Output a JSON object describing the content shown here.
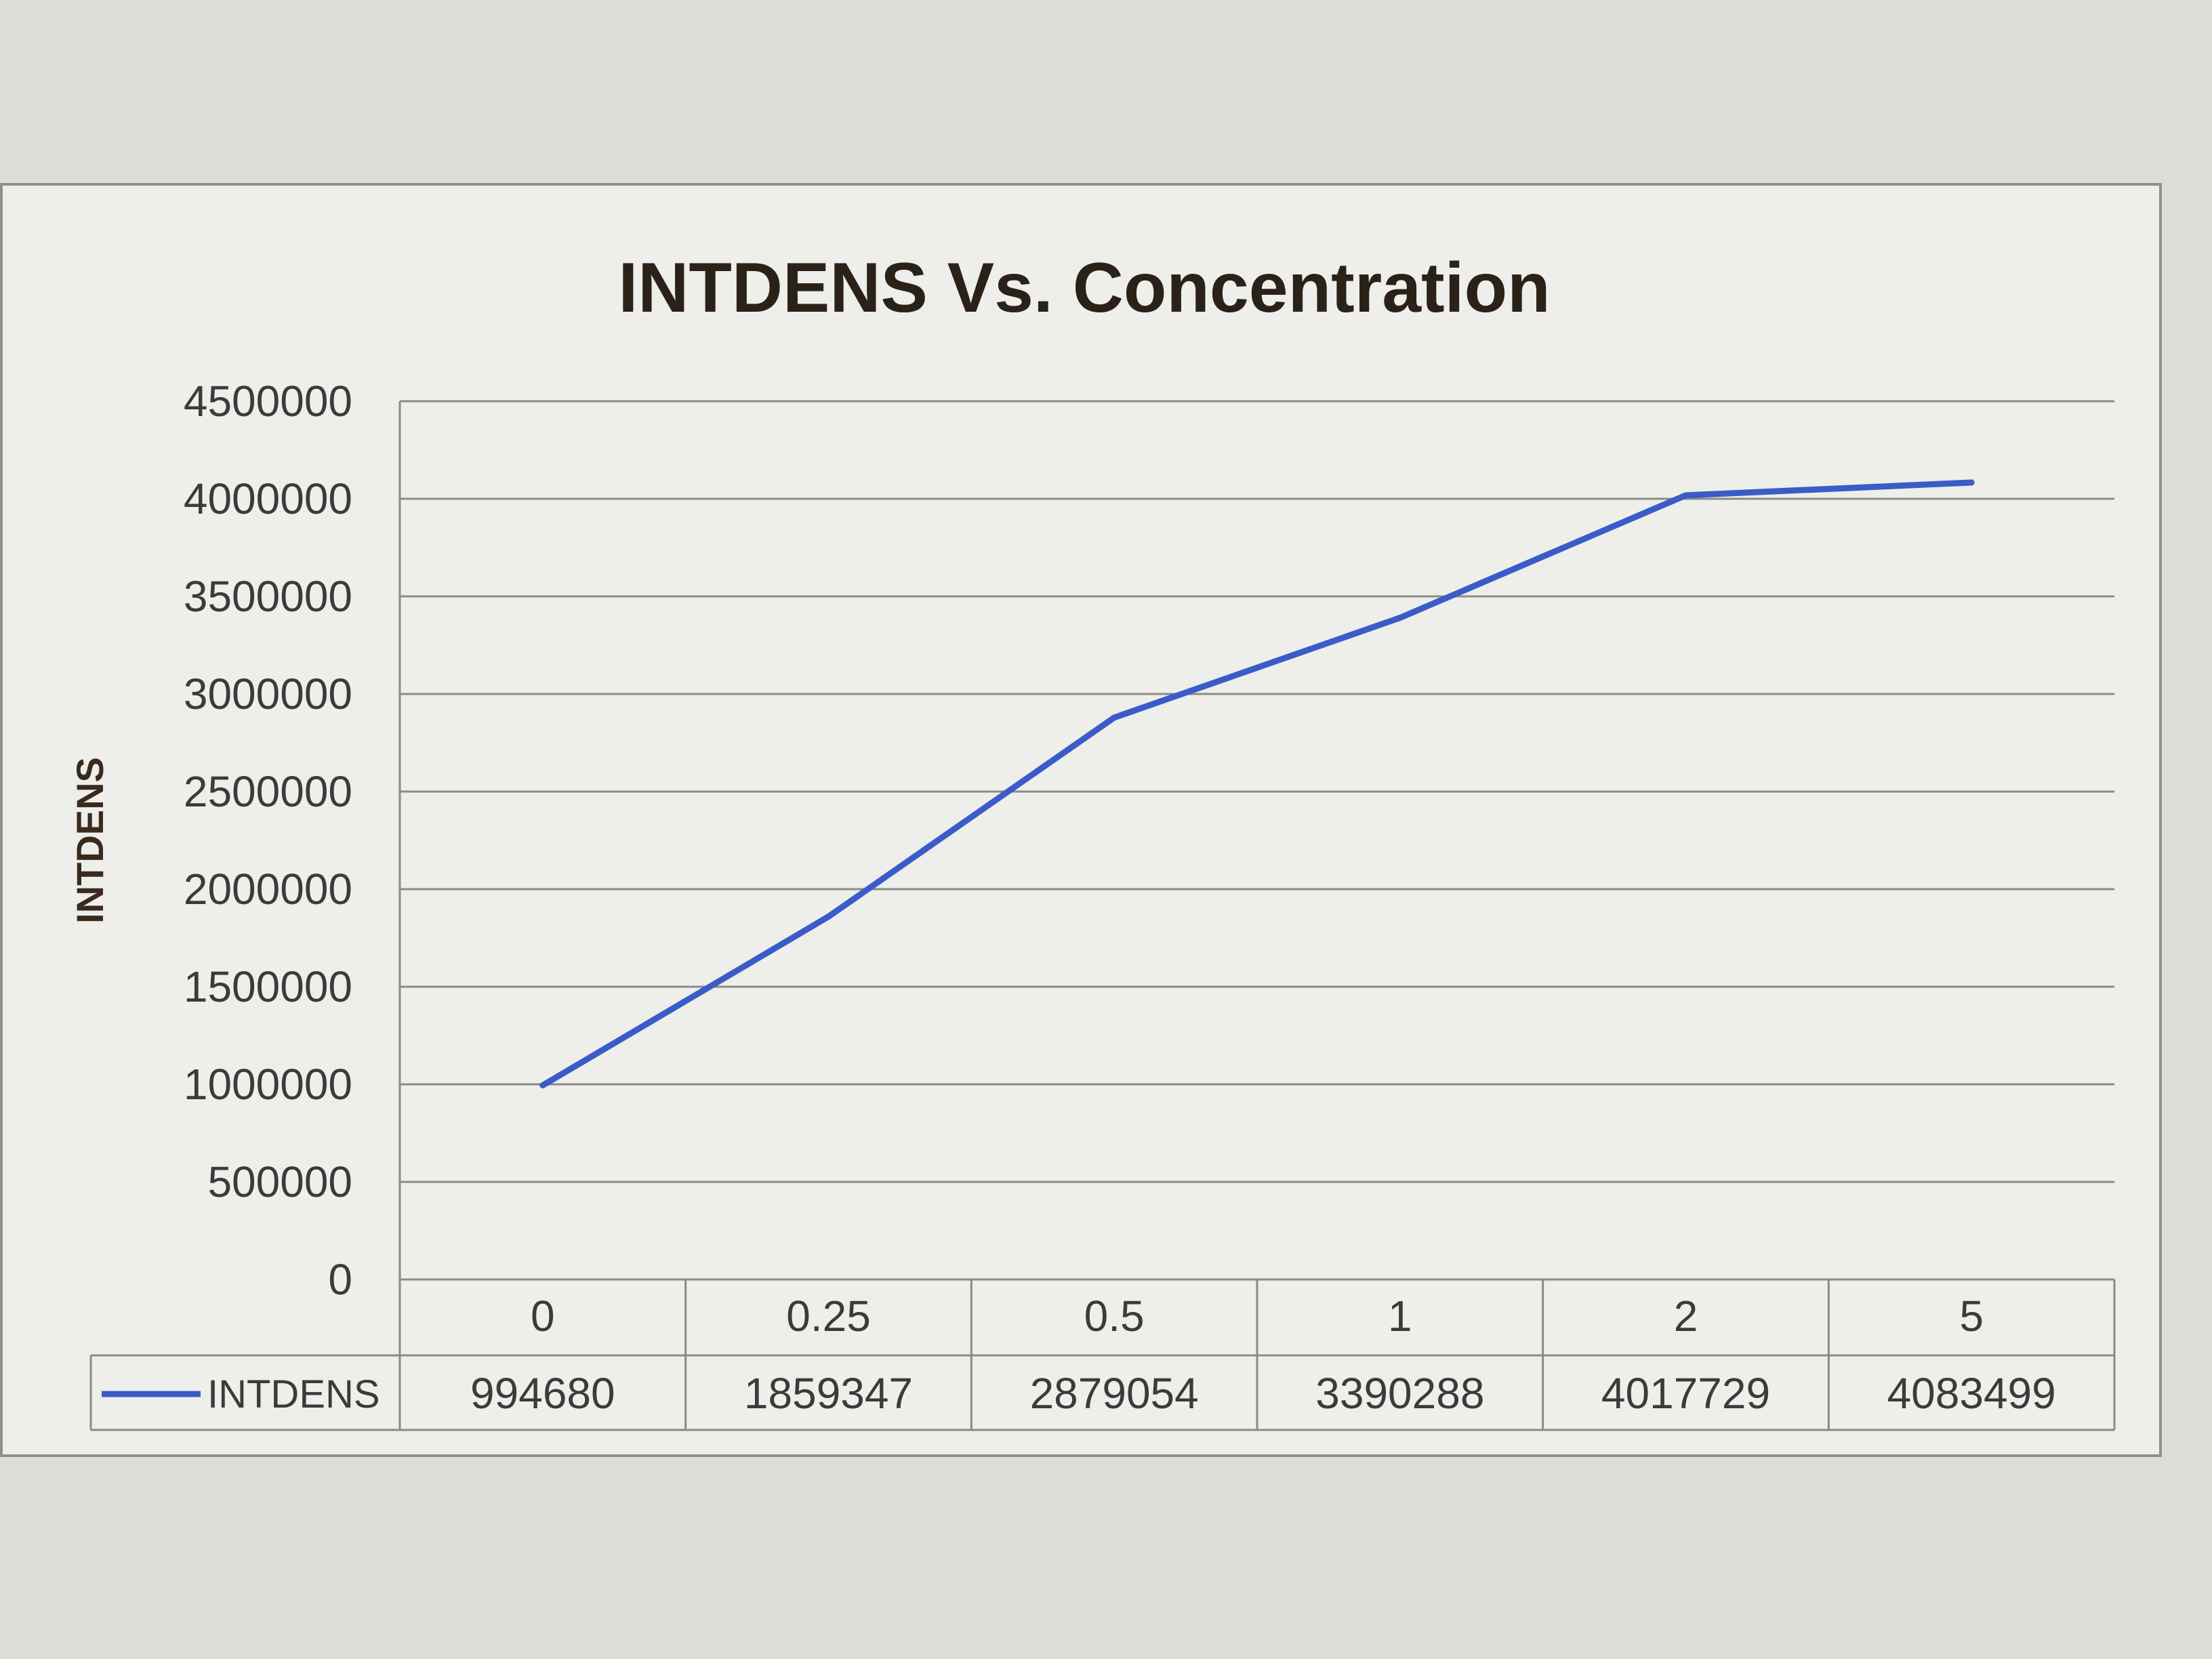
{
  "chart_data": {
    "type": "line",
    "title": "INTDENS Vs. Concentration",
    "ylabel": "INTDENS",
    "xlabel": "",
    "categories": [
      "0",
      "0.25",
      "0.5",
      "1",
      "2",
      "5"
    ],
    "series": [
      {
        "name": "INTDENS",
        "values": [
          994680,
          1859347,
          2879054,
          3390288,
          4017729,
          4083499
        ],
        "color": "#3a5cc8"
      }
    ],
    "yticks": [
      "4500000",
      "4000000",
      "3500000",
      "3000000",
      "2500000",
      "2000000",
      "1500000",
      "1000000",
      "500000",
      "0"
    ],
    "ylim": [
      0,
      4500000
    ],
    "grid": true,
    "legend": "data-table-left",
    "data_table": {
      "row_label": "INTDENS",
      "values": [
        "994680",
        "1859347",
        "2879054",
        "3390288",
        "4017729",
        "4083499"
      ]
    }
  }
}
